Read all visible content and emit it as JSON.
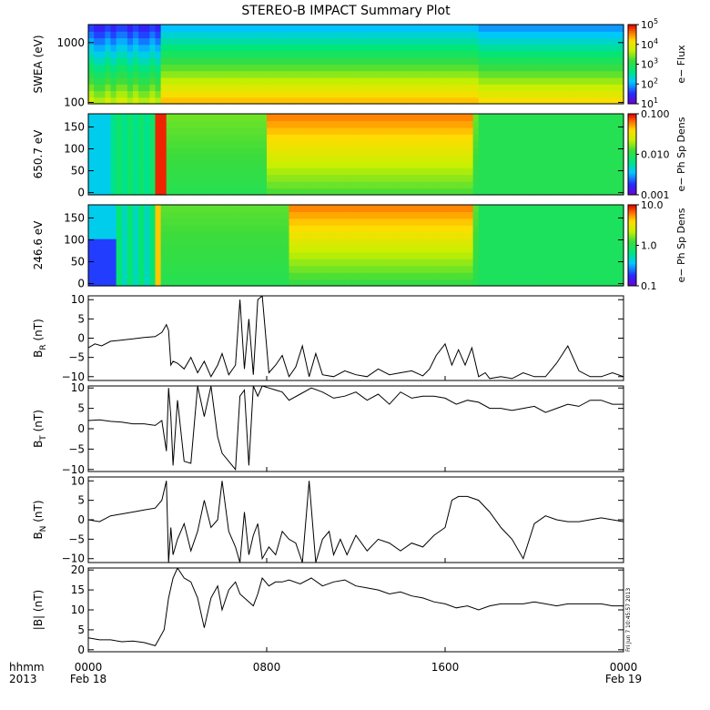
{
  "title": "STEREO-B IMPACT Summary Plot",
  "stamp": "Fri Jun  7 10:45:57 2013",
  "time_axis": {
    "corner_labels": [
      "hhmm",
      "2013"
    ],
    "ticks": [
      {
        "hour": 0,
        "label": "0000",
        "date": "Feb 18"
      },
      {
        "hour": 8,
        "label": "0800",
        "date": ""
      },
      {
        "hour": 16,
        "label": "1600",
        "date": ""
      },
      {
        "hour": 24,
        "label": "0000",
        "date": "Feb 19"
      }
    ],
    "range_hours": [
      0,
      24
    ]
  },
  "chart_data": [
    {
      "type": "heatmap",
      "ylabel": "SWEA (eV)",
      "yscale": "log",
      "ylim": [
        95,
        2000
      ],
      "yticks": [
        {
          "v": 100,
          "label": "100"
        },
        {
          "v": 1000,
          "label": "1000"
        }
      ],
      "colorbar": {
        "label": "e− Flux",
        "scale": "log",
        "range": [
          10,
          100000
        ],
        "ticks": [
          {
            "v": 10,
            "base": "10",
            "exp": "1"
          },
          {
            "v": 100,
            "base": "10",
            "exp": "2"
          },
          {
            "v": 1000,
            "base": "10",
            "exp": "3"
          },
          {
            "v": 10000,
            "base": "10",
            "exp": "4"
          },
          {
            "v": 100000,
            "base": "10",
            "exp": "5"
          }
        ]
      }
    },
    {
      "type": "heatmap",
      "ylabel": "650.7 eV",
      "yscale": "linear",
      "ylim": [
        -5,
        180
      ],
      "yticks": [
        {
          "v": 0,
          "label": "0"
        },
        {
          "v": 50,
          "label": "50"
        },
        {
          "v": 100,
          "label": "100"
        },
        {
          "v": 150,
          "label": "150"
        }
      ],
      "colorbar": {
        "label": "e− Ph Sp Dens",
        "scale": "log",
        "range": [
          0.001,
          0.1
        ],
        "ticks": [
          {
            "v": 0.001,
            "label": "0.001"
          },
          {
            "v": 0.01,
            "label": "0.010"
          },
          {
            "v": 0.1,
            "label": "0.100"
          }
        ]
      }
    },
    {
      "type": "heatmap",
      "ylabel": "246.6 eV",
      "yscale": "linear",
      "ylim": [
        -5,
        180
      ],
      "yticks": [
        {
          "v": 0,
          "label": "0"
        },
        {
          "v": 50,
          "label": "50"
        },
        {
          "v": 100,
          "label": "100"
        },
        {
          "v": 150,
          "label": "150"
        }
      ],
      "colorbar": {
        "label": "e− Ph Sp Dens",
        "scale": "log",
        "range": [
          0.1,
          10
        ],
        "ticks": [
          {
            "v": 0.1,
            "label": "0.1"
          },
          {
            "v": 1,
            "label": "1.0"
          },
          {
            "v": 10,
            "label": "10.0"
          }
        ]
      }
    },
    {
      "type": "line",
      "ylabel": "B",
      "ylabel_sub": "R",
      "ylabel_unit": "(nT)",
      "ylim": [
        -11,
        11
      ],
      "yticks": [
        {
          "v": -10,
          "label": "−10"
        },
        {
          "v": -5,
          "label": "−5"
        },
        {
          "v": 0,
          "label": "0"
        },
        {
          "v": 5,
          "label": "5"
        },
        {
          "v": 10,
          "label": "10"
        }
      ],
      "x": [
        0,
        0.3,
        0.6,
        1,
        1.5,
        2,
        2.5,
        3,
        3.3,
        3.5,
        3.6,
        3.7,
        3.8,
        4,
        4.3,
        4.6,
        4.9,
        5.2,
        5.5,
        5.8,
        6.0,
        6.3,
        6.6,
        6.8,
        7.0,
        7.2,
        7.4,
        7.6,
        7.8,
        8.1,
        8.4,
        8.7,
        9,
        9.3,
        9.6,
        9.9,
        10.2,
        10.5,
        11,
        11.5,
        12,
        12.5,
        13,
        13.5,
        14,
        14.5,
        15,
        15.3,
        15.6,
        16,
        16.3,
        16.6,
        16.9,
        17.2,
        17.5,
        17.8,
        18,
        18.5,
        19,
        19.5,
        20,
        20.5,
        21,
        21.5,
        22,
        22.5,
        23,
        23.5,
        24
      ],
      "y": [
        -2.5,
        -1.5,
        -2,
        -0.8,
        -0.5,
        -0.2,
        0.2,
        0.4,
        1.5,
        3.5,
        2,
        -7,
        -6,
        -6.5,
        -8,
        -5,
        -9,
        -6,
        -10,
        -7,
        -4,
        -9.5,
        -7,
        10,
        -8,
        5,
        -9.5,
        10,
        11,
        -9,
        -7,
        -4.5,
        -10,
        -7.5,
        -2,
        -10,
        -4,
        -9.5,
        -10,
        -8.5,
        -9.5,
        -10,
        -8,
        -9.5,
        -9,
        -8.5,
        -9.8,
        -8,
        -4.5,
        -1.5,
        -7,
        -3,
        -7,
        -2.5,
        -10,
        -9,
        -10.5,
        -10,
        -10.5,
        -9,
        -10,
        -10,
        -6.5,
        -2,
        -8.5,
        -10,
        -10,
        -9,
        -10
      ]
    },
    {
      "type": "line",
      "ylabel": "B",
      "ylabel_sub": "T",
      "ylabel_unit": "(nT)",
      "ylim": [
        -10.5,
        10.5
      ],
      "yticks": [
        {
          "v": -10,
          "label": "−10"
        },
        {
          "v": -5,
          "label": "−5"
        },
        {
          "v": 0,
          "label": "0"
        },
        {
          "v": 5,
          "label": "5"
        },
        {
          "v": 10,
          "label": "10"
        }
      ],
      "x": [
        0,
        0.5,
        1,
        1.5,
        2,
        2.5,
        3,
        3.3,
        3.5,
        3.6,
        3.7,
        3.8,
        4,
        4.3,
        4.6,
        4.9,
        5.2,
        5.5,
        5.8,
        6.0,
        6.3,
        6.6,
        6.8,
        7.0,
        7.2,
        7.4,
        7.6,
        7.8,
        8.1,
        8.4,
        8.7,
        9,
        9.5,
        10,
        10.5,
        11,
        11.5,
        12,
        12.5,
        13,
        13.5,
        14,
        14.5,
        15,
        15.5,
        16,
        16.5,
        17,
        17.5,
        18,
        18.5,
        19,
        19.5,
        20,
        20.5,
        21,
        21.5,
        22,
        22.5,
        23,
        23.5,
        24
      ],
      "y": [
        2,
        2.2,
        1.8,
        1.6,
        1.2,
        1.2,
        0.8,
        2,
        -5.5,
        10,
        3,
        -9,
        7,
        -8,
        -8.5,
        10.5,
        3,
        10.5,
        -2,
        -6,
        -8,
        -10,
        8,
        9.5,
        -9,
        10.5,
        8,
        10.5,
        10,
        9.5,
        9,
        7,
        8.5,
        10,
        9,
        7.5,
        8,
        9,
        7,
        8.5,
        6,
        9,
        7.5,
        8,
        8,
        7.5,
        6,
        7,
        6.5,
        5,
        5,
        4.5,
        5,
        5.5,
        4,
        5,
        6,
        5.5,
        7,
        7,
        6,
        6
      ]
    },
    {
      "type": "line",
      "ylabel": "B",
      "ylabel_sub": "N",
      "ylabel_unit": "(nT)",
      "ylim": [
        -11,
        11
      ],
      "yticks": [
        {
          "v": -10,
          "label": "−10"
        },
        {
          "v": -5,
          "label": "−5"
        },
        {
          "v": 0,
          "label": "0"
        },
        {
          "v": 5,
          "label": "5"
        },
        {
          "v": 10,
          "label": "10"
        }
      ],
      "x": [
        0,
        0.5,
        1,
        1.5,
        2,
        2.5,
        3,
        3.3,
        3.5,
        3.6,
        3.7,
        3.8,
        4,
        4.3,
        4.6,
        4.9,
        5.2,
        5.5,
        5.8,
        6.0,
        6.3,
        6.6,
        6.8,
        7.0,
        7.2,
        7.4,
        7.6,
        7.8,
        8.1,
        8.4,
        8.7,
        9,
        9.3,
        9.6,
        9.9,
        10.2,
        10.5,
        10.8,
        11,
        11.3,
        11.6,
        12,
        12.5,
        13,
        13.5,
        14,
        14.5,
        15,
        15.5,
        16,
        16.3,
        16.6,
        17,
        17.5,
        18,
        18.5,
        19,
        19.5,
        20,
        20.5,
        21,
        21.5,
        22,
        22.5,
        23,
        23.5,
        24
      ],
      "y": [
        0,
        -0.5,
        1,
        1.5,
        2,
        2.5,
        3,
        5,
        10,
        -11,
        -2,
        -9,
        -5,
        -1,
        -8,
        -3,
        5,
        -2,
        0,
        10,
        -3,
        -7,
        -11,
        2,
        -9,
        -4,
        -1,
        -10,
        -7,
        -9,
        -3,
        -5,
        -6,
        -11,
        10,
        -11,
        -5,
        -3,
        -9,
        -5,
        -9,
        -4,
        -8,
        -5,
        -6,
        -8,
        -6,
        -7,
        -4,
        -2,
        5,
        6,
        6,
        5,
        2,
        -2,
        -5,
        -10,
        -1,
        1,
        0,
        -0.5,
        -0.5,
        0,
        0.5,
        0,
        -0.5
      ]
    },
    {
      "type": "line",
      "ylabel": "|B|",
      "ylabel_sub": "",
      "ylabel_unit": "(nT)",
      "ylim": [
        -0.5,
        20.5
      ],
      "yticks": [
        {
          "v": 0,
          "label": "0"
        },
        {
          "v": 5,
          "label": "5"
        },
        {
          "v": 10,
          "label": "10"
        },
        {
          "v": 15,
          "label": "15"
        },
        {
          "v": 20,
          "label": "20"
        }
      ],
      "x": [
        0,
        0.5,
        1,
        1.5,
        2,
        2.5,
        3,
        3.2,
        3.4,
        3.6,
        3.8,
        4,
        4.3,
        4.6,
        4.9,
        5.2,
        5.5,
        5.8,
        6.0,
        6.3,
        6.6,
        6.8,
        7.0,
        7.2,
        7.4,
        7.6,
        7.8,
        8.1,
        8.4,
        8.7,
        9,
        9.5,
        10,
        10.5,
        11,
        11.5,
        12,
        12.5,
        13,
        13.5,
        14,
        14.5,
        15,
        15.5,
        16,
        16.5,
        17,
        17.5,
        18,
        18.5,
        19,
        19.5,
        20,
        20.5,
        21,
        21.5,
        22,
        22.5,
        23,
        23.5,
        24
      ],
      "y": [
        3,
        2.5,
        2.5,
        2,
        2.2,
        1.8,
        1,
        3,
        5,
        13,
        18,
        20.5,
        18,
        17,
        13,
        5.5,
        13,
        16,
        10,
        15,
        17,
        14,
        13,
        12,
        11,
        14,
        18,
        16,
        17,
        17,
        17.5,
        16.5,
        18,
        16,
        17,
        17.5,
        16,
        15.5,
        15,
        14,
        14.5,
        13.5,
        13,
        12,
        11.5,
        10.5,
        11,
        10,
        11,
        11.5,
        11.5,
        11.5,
        12,
        11.5,
        11,
        11.5,
        11.5,
        11.5,
        11.5,
        11,
        11
      ]
    }
  ]
}
